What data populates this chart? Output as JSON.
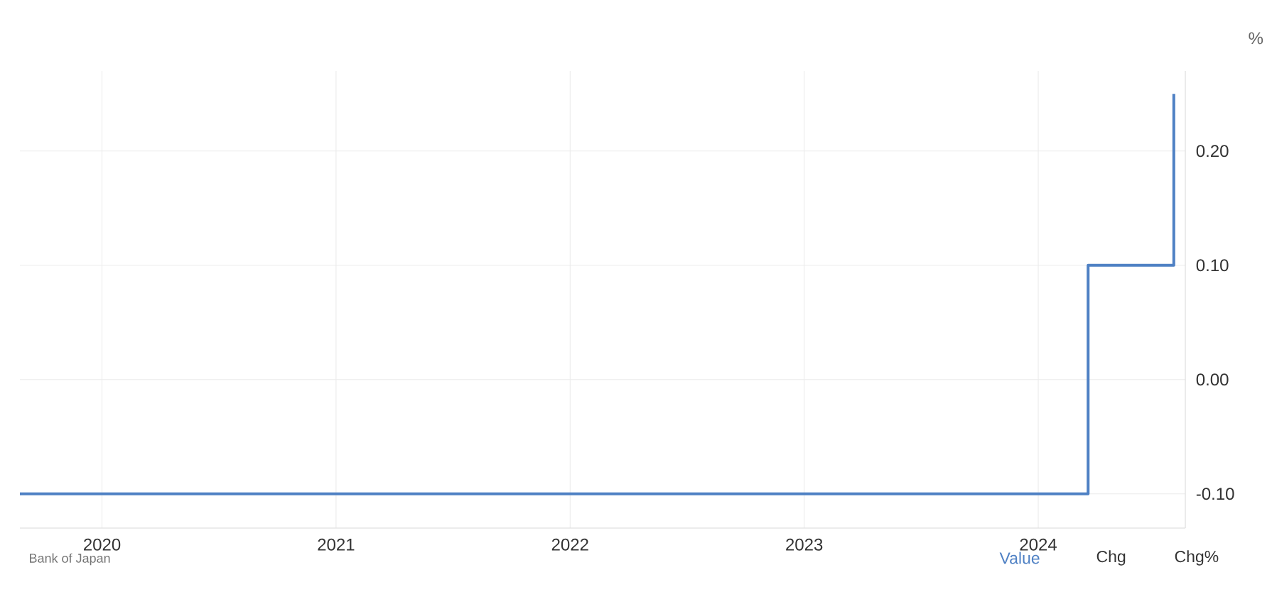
{
  "chart_data": {
    "type": "step",
    "x": [
      "2019-08-26",
      "2024-03-19",
      "2024-07-31"
    ],
    "series": [
      {
        "color": "#4f81c4",
        "values": [
          -0.1,
          0.1,
          0.25
        ]
      }
    ],
    "xlim": [
      "2019-08-26",
      "2024-08-18"
    ],
    "xticks": [
      "2020",
      "2021",
      "2022",
      "2023",
      "2024"
    ],
    "ylim": [
      -0.13,
      0.27
    ],
    "yticks": [
      {
        "value": -0.1,
        "label": "-0.10"
      },
      {
        "value": 0,
        "label": "0.00"
      },
      {
        "value": 0.1,
        "label": "0.10"
      },
      {
        "value": 0.2,
        "label": "0.20"
      }
    ],
    "ylabel": "%",
    "grid": true,
    "annotations": [
      "Bank of Japan",
      "Value",
      "Chg",
      "Chg%"
    ]
  }
}
